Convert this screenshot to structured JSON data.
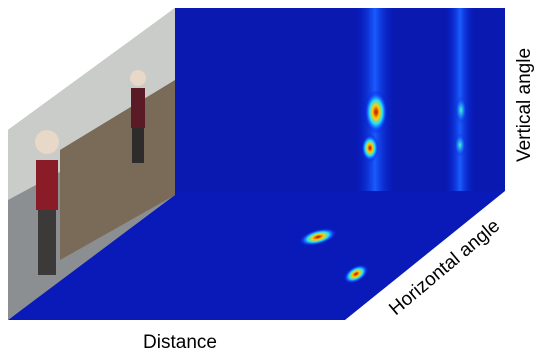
{
  "labels": {
    "vertical": "Vertical angle",
    "horizontal": "Horizontal angle",
    "distance": "Distance"
  }
}
